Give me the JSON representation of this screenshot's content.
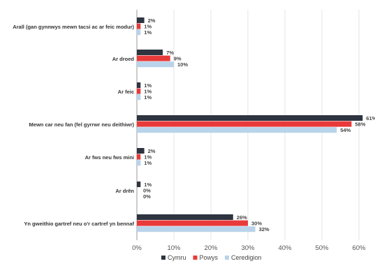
{
  "chart_data": {
    "type": "bar",
    "orientation": "horizontal",
    "categories": [
      "Arall (gan gynnwys mewn tacsi ac ar feic modur)",
      "Ar droed",
      "Ar feic",
      "Mewn car neu fan (fel gyrrwr neu deithiwr)",
      "Ar fws neu fws mini",
      "Ar drên",
      "Yn gweithio gartref neu o'r cartref yn bennaf"
    ],
    "series": [
      {
        "name": "Cymru",
        "color": "#2e3440",
        "values": [
          2,
          7,
          1,
          61,
          2,
          1,
          26
        ],
        "labels": [
          "2%",
          "7%",
          "1%",
          "61%",
          "2%",
          "1%",
          "26%"
        ]
      },
      {
        "name": "Powys",
        "color": "#e83a3a",
        "values": [
          1,
          9,
          1,
          58,
          1,
          0,
          30
        ],
        "labels": [
          "1%",
          "9%",
          "1%",
          "58%",
          "1%",
          "0%",
          "30%"
        ]
      },
      {
        "name": "Ceredigion",
        "color": "#b9d3ea",
        "values": [
          1,
          10,
          1,
          54,
          1,
          0,
          32
        ],
        "labels": [
          "1%",
          "10%",
          "1%",
          "54%",
          "1%",
          "0%",
          "32%"
        ]
      }
    ],
    "xlim": [
      0,
      60
    ],
    "xticks": [
      0,
      10,
      20,
      30,
      40,
      50,
      60
    ],
    "xtick_labels": [
      "0%",
      "10%",
      "20%",
      "30%",
      "40%",
      "50%",
      "60%"
    ],
    "grid": true,
    "legend_position": "bottom"
  }
}
